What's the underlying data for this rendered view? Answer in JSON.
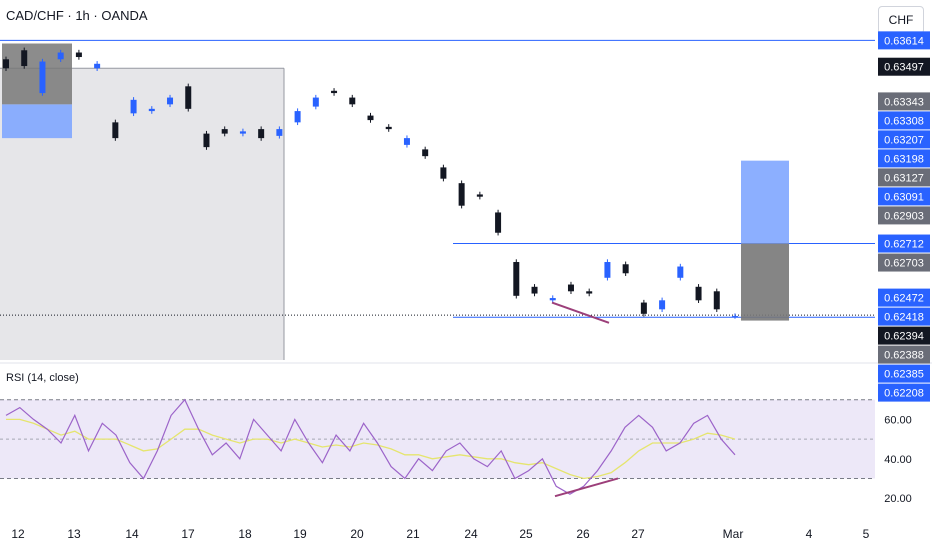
{
  "header": {
    "symbol": "CAD/CHF · 1h · OANDA",
    "currency": "CHF"
  },
  "chart_data": [
    {
      "type": "candlestick",
      "title": "CAD/CHF · 1h · OANDA",
      "price_axis_labels": [
        "0.63614",
        "0.63497",
        "0.63343",
        "0.63308",
        "0.63207",
        "0.63198",
        "0.63127",
        "0.63091",
        "0.62903",
        "0.62712",
        "0.62703",
        "0.62472",
        "0.62418",
        "0.62394",
        "0.62388",
        "0.62385",
        "0.62208"
      ],
      "current_price": "0.62394",
      "x_tick_labels": [
        "12",
        "13",
        "14",
        "17",
        "18",
        "19",
        "20",
        "21",
        "24",
        "25",
        "26",
        "27",
        "Mar",
        "4",
        "5"
      ],
      "close_path": [
        [
          0.6353,
          0.6349
        ],
        [
          0.6357,
          0.635
        ],
        [
          0.6338,
          0.6352
        ],
        [
          0.6353,
          0.6356
        ],
        [
          0.6356,
          0.6354
        ],
        [
          0.6349,
          0.6351
        ],
        [
          0.6325,
          0.6318
        ],
        [
          0.6329,
          0.6335
        ],
        [
          0.633,
          0.6331
        ],
        [
          0.6333,
          0.6336
        ],
        [
          0.6341,
          0.6331
        ],
        [
          0.632,
          0.6314
        ],
        [
          0.6322,
          0.632
        ],
        [
          0.632,
          0.6321
        ],
        [
          0.6322,
          0.6318
        ],
        [
          0.6319,
          0.6322
        ],
        [
          0.6325,
          0.633
        ],
        [
          0.6332,
          0.6336
        ],
        [
          0.6339,
          0.6338
        ],
        [
          0.6336,
          0.6333
        ],
        [
          0.6328,
          0.6326
        ],
        [
          0.6323,
          0.6322
        ],
        [
          0.6315,
          0.6318
        ],
        [
          0.6313,
          0.631
        ],
        [
          0.6305,
          0.63
        ],
        [
          0.6298,
          0.6288
        ],
        [
          0.6293,
          0.6292
        ],
        [
          0.6285,
          0.6276
        ],
        [
          0.6263,
          0.6248
        ],
        [
          0.6252,
          0.6249
        ],
        [
          0.6246,
          0.6247
        ],
        [
          0.6253,
          0.625
        ],
        [
          0.625,
          0.6249
        ],
        [
          0.6256,
          0.6263
        ],
        [
          0.6262,
          0.6258
        ],
        [
          0.6245,
          0.624
        ],
        [
          0.6242,
          0.6246
        ],
        [
          0.6256,
          0.6261
        ],
        [
          0.6252,
          0.6246
        ],
        [
          0.625,
          0.6242
        ],
        [
          0.6239,
          0.6239
        ]
      ],
      "levels": {
        "upper_line": 0.63614,
        "range_high": 0.62712,
        "range_low": 0.62385,
        "current": 0.62394
      },
      "zones": {
        "left_target": [
          0.6333,
          0.6318
        ],
        "left_stop": [
          0.636,
          0.6333
        ],
        "right_target": [
          0.6308,
          0.62712
        ],
        "right_stop": [
          0.62712,
          0.6237
        ]
      },
      "colors": {
        "up": "#2962ff",
        "down": "#131722",
        "level_line": "#2962ff",
        "target_zone": "#80a6ff",
        "stop_zone": "#787878",
        "shade": "#e6e6e9",
        "divergence": "#9c3f7a"
      }
    },
    {
      "type": "line",
      "title": "RSI (14, close)",
      "y_tick_labels": [
        "60.00",
        "40.00",
        "20.00"
      ],
      "bands": [
        70,
        30
      ],
      "ylim": [
        15,
        80
      ],
      "rsi_path": [
        62,
        66,
        60,
        55,
        48,
        62,
        44,
        58,
        52,
        38,
        30,
        44,
        62,
        70,
        55,
        42,
        48,
        40,
        60,
        52,
        44,
        60,
        48,
        38,
        52,
        44,
        58,
        48,
        36,
        30,
        40,
        34,
        44,
        48,
        40,
        36,
        44,
        30,
        34,
        40,
        26,
        22,
        26,
        34,
        44,
        56,
        62,
        56,
        44,
        48,
        58,
        62,
        50,
        42
      ],
      "signal_path": [
        60,
        60,
        58,
        55,
        52,
        54,
        50,
        50,
        50,
        47,
        44,
        45,
        50,
        55,
        55,
        52,
        50,
        48,
        50,
        50,
        48,
        50,
        48,
        46,
        47,
        46,
        48,
        47,
        45,
        42,
        42,
        40,
        41,
        42,
        41,
        40,
        40,
        38,
        37,
        38,
        35,
        32,
        30,
        31,
        33,
        38,
        44,
        48,
        48,
        48,
        50,
        53,
        52,
        50
      ],
      "colors": {
        "rsi": "#9c64c9",
        "signal": "#e5e56e",
        "band_fill": "#ede8f8",
        "divergence": "#9c3f7a"
      }
    }
  ]
}
